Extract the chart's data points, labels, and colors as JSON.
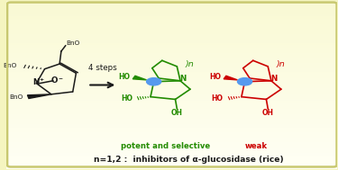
{
  "bg_gradient_top": "#fffff8",
  "bg_gradient_bottom": "#f5f5c0",
  "border_color": "#c8c870",
  "arrow_text": "4 steps",
  "label_green": "potent and selective",
  "label_red": "weak",
  "label_bottom": "n=1,2 :  inhibitors of α-glucosidase (rice)",
  "green_color": "#228B00",
  "red_color": "#CC0000",
  "black_color": "#1a1a1a",
  "blue_color": "#5599ee",
  "gray_color": "#888888"
}
